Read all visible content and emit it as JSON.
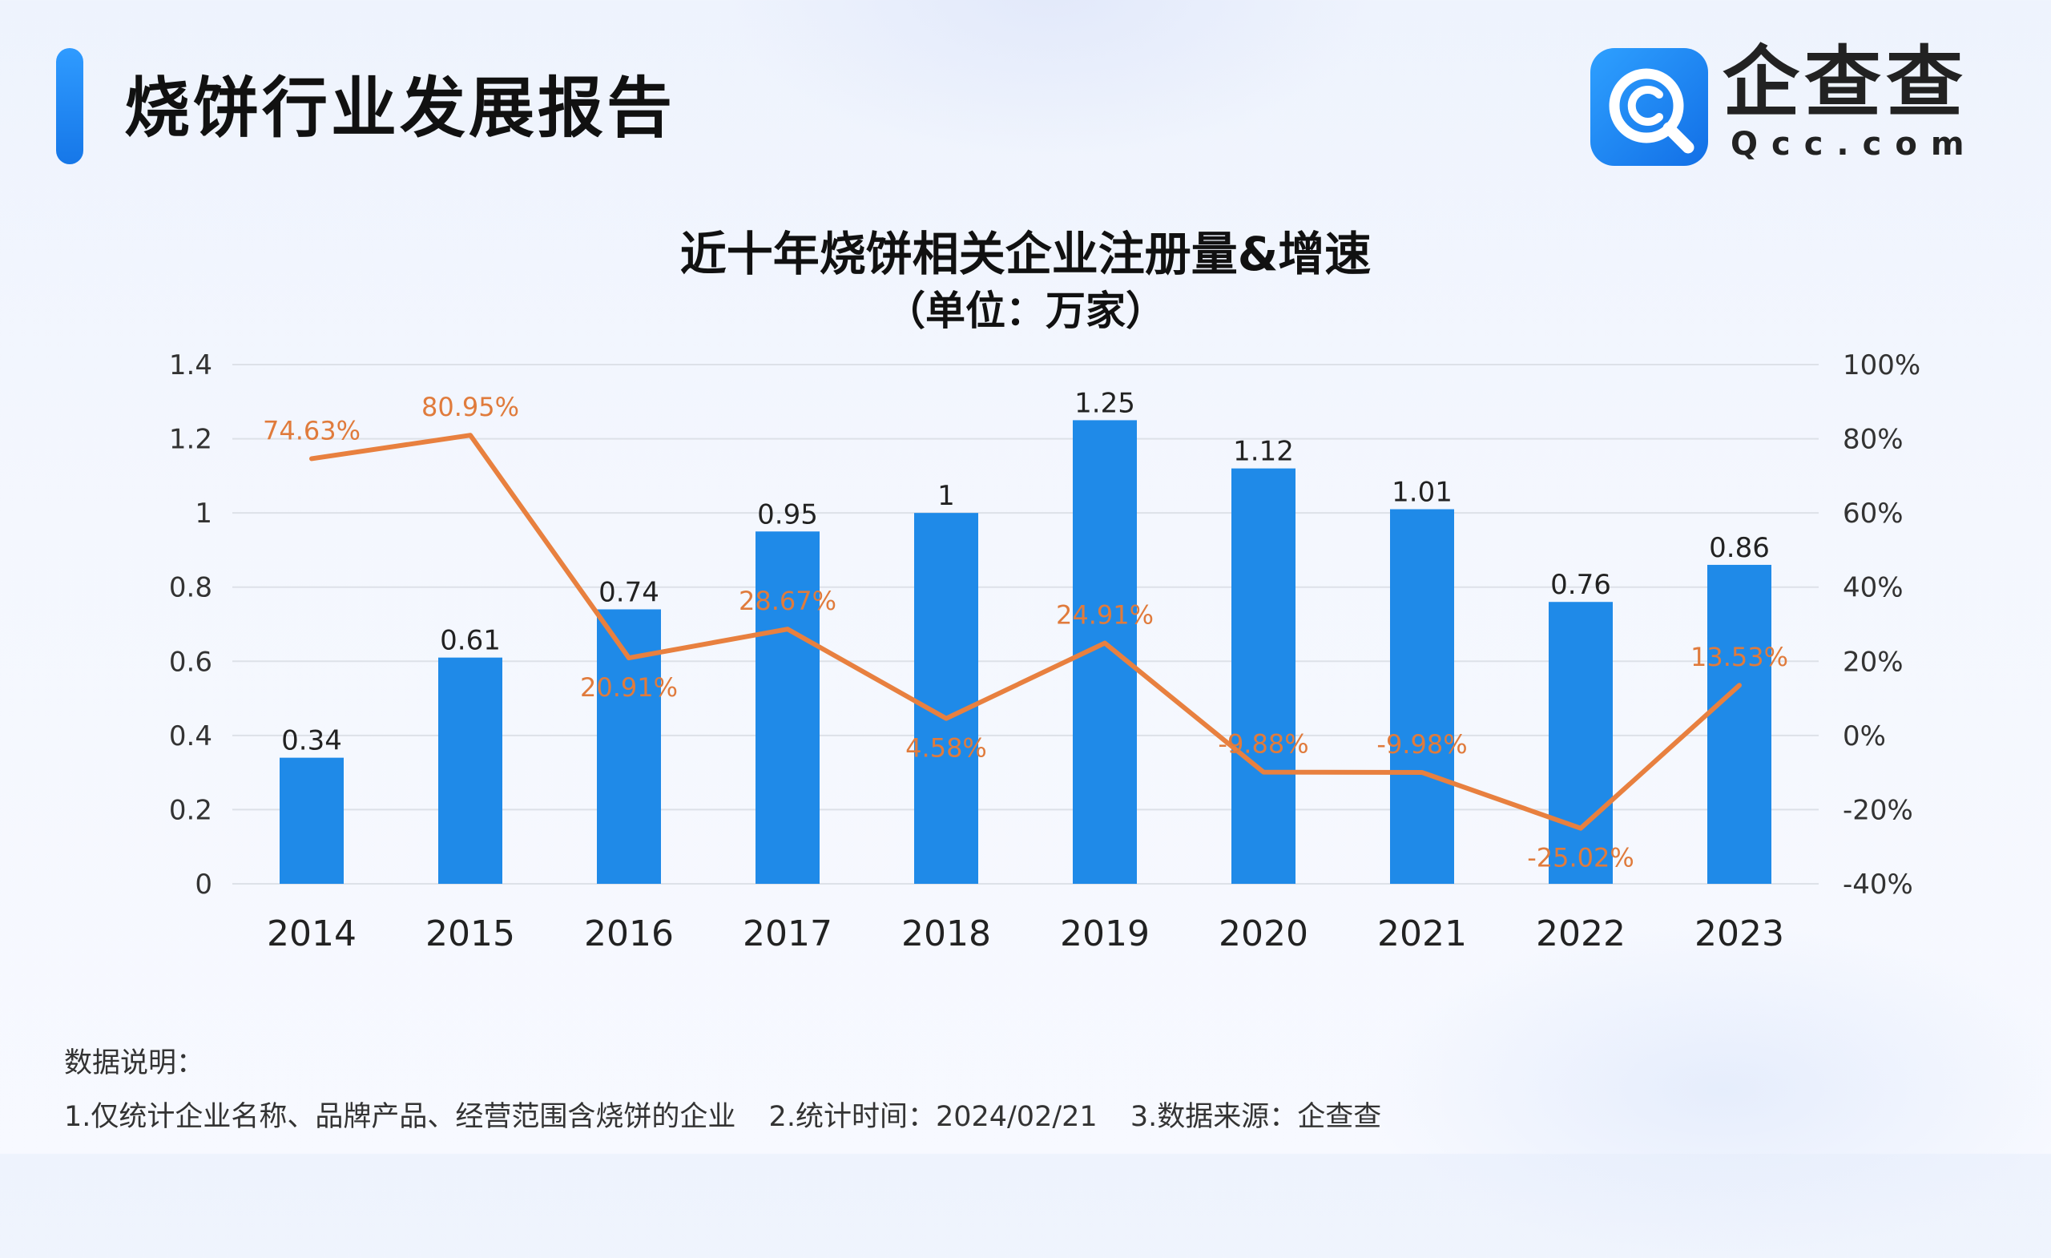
{
  "header": {
    "report_title": "烧饼行业发展报告",
    "logo_name": "企查查",
    "logo_domain": "Qcc.com",
    "logo_icon": "qcc-magnifier-logo-icon"
  },
  "colors": {
    "bar": "#1f8ae8",
    "line": "#e8803f",
    "accent": "#1b82f0",
    "grid": "#dde1e8"
  },
  "chart_data": {
    "type": "bar",
    "title": "近十年烧饼相关企业注册量&增速",
    "subtitle": "（单位：万家）",
    "categories": [
      "2014",
      "2015",
      "2016",
      "2017",
      "2018",
      "2019",
      "2020",
      "2021",
      "2022",
      "2023"
    ],
    "series": [
      {
        "type": "bar",
        "axis": "left",
        "values": [
          0.34,
          0.61,
          0.74,
          0.95,
          1,
          1.25,
          1.12,
          1.01,
          0.76,
          0.86
        ],
        "labels": [
          "0.34",
          "0.61",
          "0.74",
          "0.95",
          "1",
          "1.25",
          "1.12",
          "1.01",
          "0.76",
          "0.86"
        ]
      },
      {
        "type": "line",
        "axis": "right",
        "values": [
          74.63,
          80.95,
          20.91,
          28.67,
          4.58,
          24.91,
          -9.88,
          -9.98,
          -25.02,
          13.53
        ],
        "labels": [
          "74.63%",
          "80.95%",
          "20.91%",
          "28.67%",
          "4.58%",
          "24.91%",
          "-9.88%",
          "-9.98%",
          "-25.02%",
          "13.53%"
        ]
      }
    ],
    "y_left": {
      "min": 0,
      "max": 1.4,
      "ticks": [
        "0",
        "0.2",
        "0.4",
        "0.6",
        "0.8",
        "1",
        "1.2",
        "1.4"
      ]
    },
    "y_right": {
      "min": -40,
      "max": 100,
      "ticks": [
        "-40%",
        "-20%",
        "0%",
        "20%",
        "40%",
        "60%",
        "80%",
        "100%"
      ]
    },
    "grid": true,
    "legend": "none"
  },
  "notes": {
    "title": "数据说明：",
    "items": [
      "1.仅统计企业名称、品牌产品、经营范围含烧饼的企业",
      "2.统计时间：2024/02/21",
      "3.数据来源：企查查"
    ]
  }
}
